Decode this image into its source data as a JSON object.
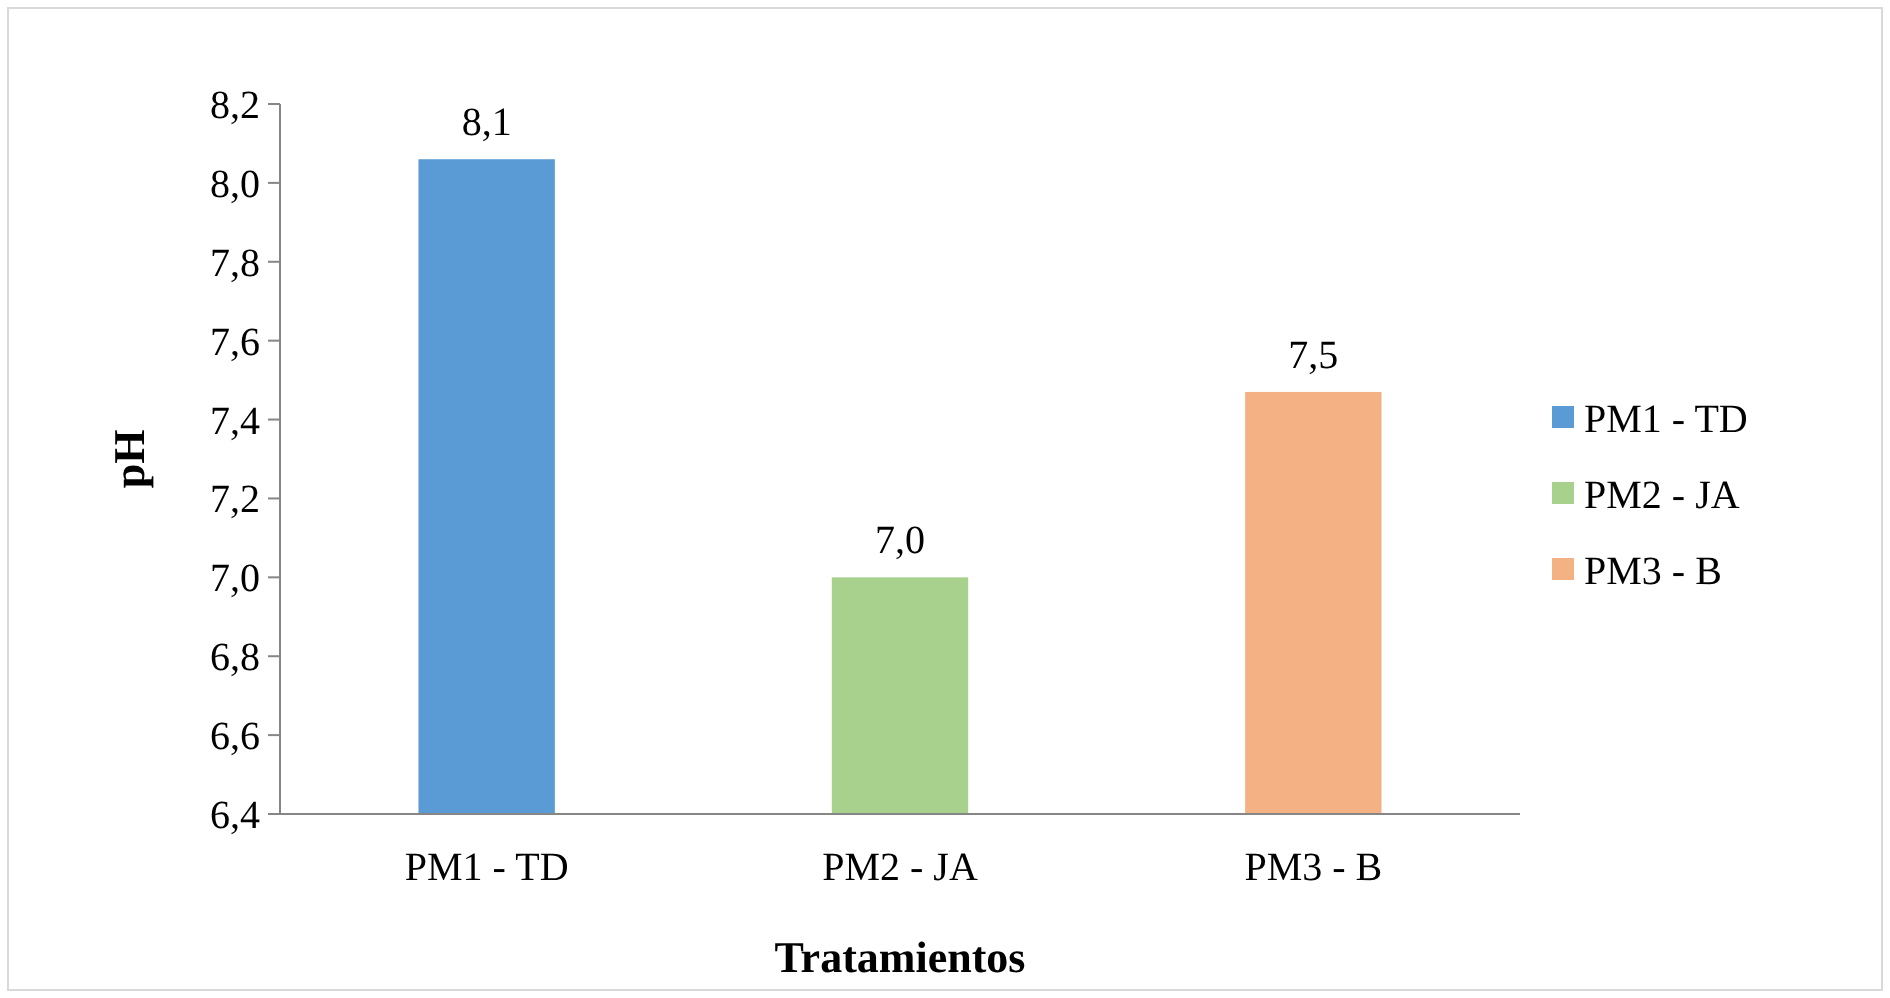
{
  "chart_data": {
    "type": "bar",
    "xlabel": "Tratamientos",
    "ylabel": "pH",
    "categories": [
      "PM1 - TD",
      "PM2 - JA",
      "PM3 - B"
    ],
    "series": [
      {
        "name": "PM1 - TD",
        "color": "#5b9bd5",
        "values": [
          8.06,
          null,
          null
        ],
        "value_labels": [
          "8,1",
          null,
          null
        ]
      },
      {
        "name": "PM2 - JA",
        "color": "#a9d18e",
        "values": [
          null,
          7.0,
          null
        ],
        "value_labels": [
          null,
          "7,0",
          null
        ]
      },
      {
        "name": "PM3 - B",
        "color": "#f4b183",
        "values": [
          null,
          null,
          7.47
        ],
        "value_labels": [
          null,
          null,
          "7,5"
        ]
      }
    ],
    "ylim": [
      6.4,
      8.2
    ],
    "yticks": [
      {
        "value": 6.4,
        "label": "6,4"
      },
      {
        "value": 6.6,
        "label": "6,6"
      },
      {
        "value": 6.8,
        "label": "6,8"
      },
      {
        "value": 7.0,
        "label": "7,0"
      },
      {
        "value": 7.2,
        "label": "7,2"
      },
      {
        "value": 7.4,
        "label": "7,4"
      },
      {
        "value": 7.6,
        "label": "7,6"
      },
      {
        "value": 7.8,
        "label": "7,8"
      },
      {
        "value": 8.0,
        "label": "8,0"
      },
      {
        "value": 8.2,
        "label": "8,2"
      }
    ],
    "legend": "right"
  }
}
